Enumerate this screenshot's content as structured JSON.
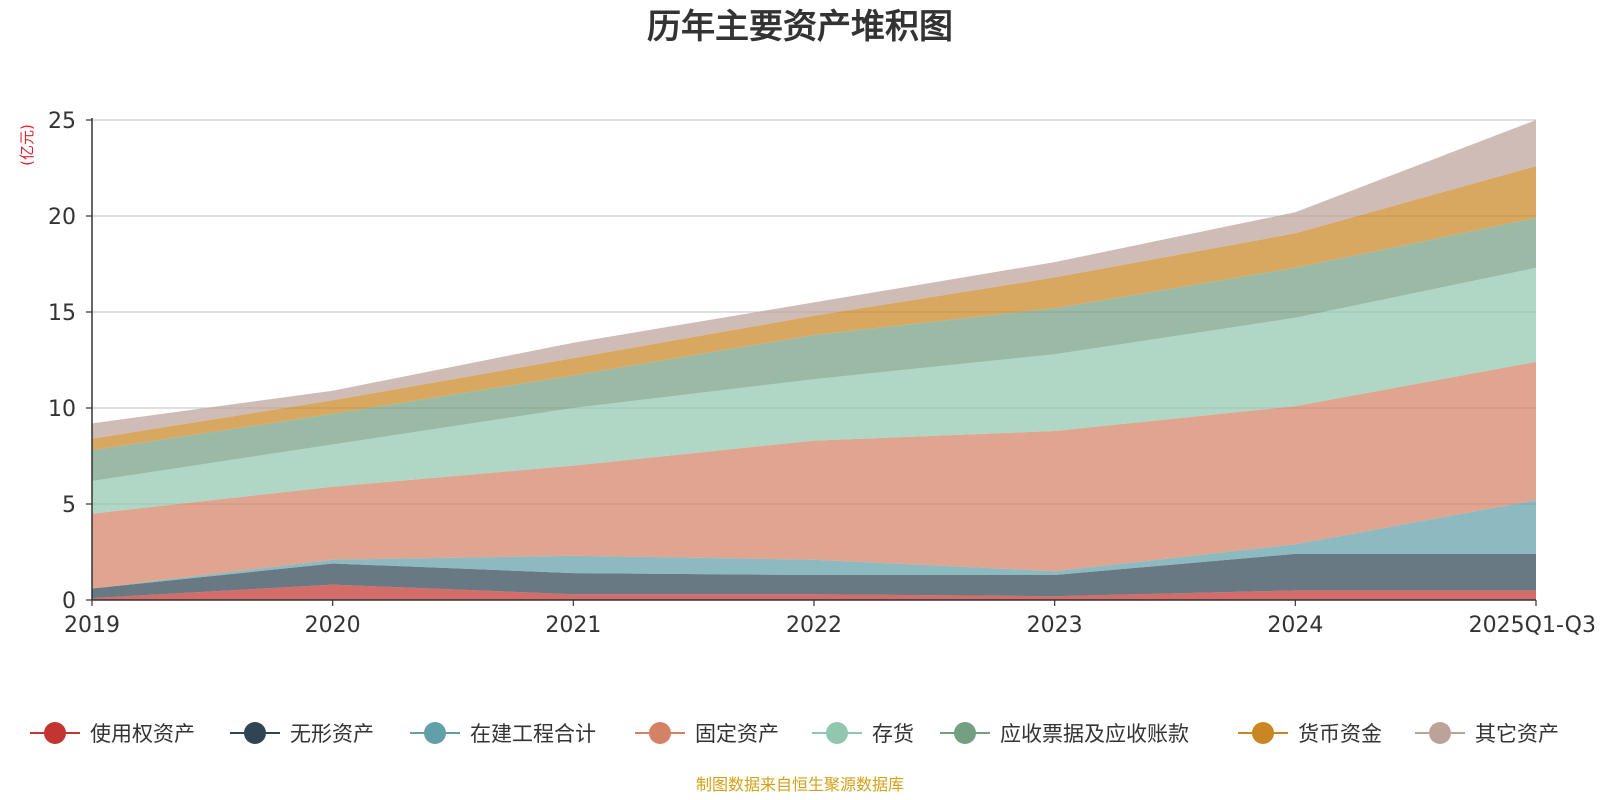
{
  "chart_data": {
    "type": "area",
    "stacked": true,
    "title": "历年主要资产堆积图",
    "ylabel": "(亿元)",
    "ylim": [
      0,
      25
    ],
    "yticks": [
      "0",
      "5",
      "10",
      "15",
      "20",
      "25"
    ],
    "categories": [
      "2019",
      "2020",
      "2021",
      "2022",
      "2023",
      "2024",
      "2025Q1-Q3"
    ],
    "series": [
      {
        "name": "使用权资产",
        "color": "#c23531",
        "values": [
          0.1,
          0.8,
          0.3,
          0.3,
          0.2,
          0.5,
          0.5
        ]
      },
      {
        "name": "无形资产",
        "color": "#2f4554",
        "values": [
          0.5,
          1.1,
          1.1,
          1.0,
          1.1,
          1.9,
          1.9
        ]
      },
      {
        "name": "在建工程合计",
        "color": "#61a0a8",
        "values": [
          0.0,
          0.2,
          0.9,
          0.8,
          0.2,
          0.5,
          2.8
        ]
      },
      {
        "name": "固定资产",
        "color": "#d48265",
        "values": [
          3.9,
          3.8,
          4.7,
          6.2,
          7.3,
          7.2,
          7.2
        ]
      },
      {
        "name": "存货",
        "color": "#91c7ae",
        "values": [
          1.7,
          2.2,
          3.0,
          3.2,
          4.0,
          4.6,
          4.9
        ]
      },
      {
        "name": "应收票据及应收账款",
        "color": "#749f83",
        "values": [
          1.6,
          1.6,
          1.7,
          2.3,
          2.4,
          2.6,
          2.6
        ]
      },
      {
        "name": "货币资金",
        "color": "#ca8622",
        "values": [
          0.6,
          0.7,
          0.9,
          1.0,
          1.6,
          1.8,
          2.7
        ]
      },
      {
        "name": "其它资产",
        "color": "#bda29a",
        "values": [
          0.8,
          0.5,
          0.8,
          0.7,
          0.8,
          1.1,
          2.4
        ]
      }
    ],
    "legend": "bottom",
    "grid": true
  },
  "source_note": "制图数据来自恒生聚源数据库"
}
